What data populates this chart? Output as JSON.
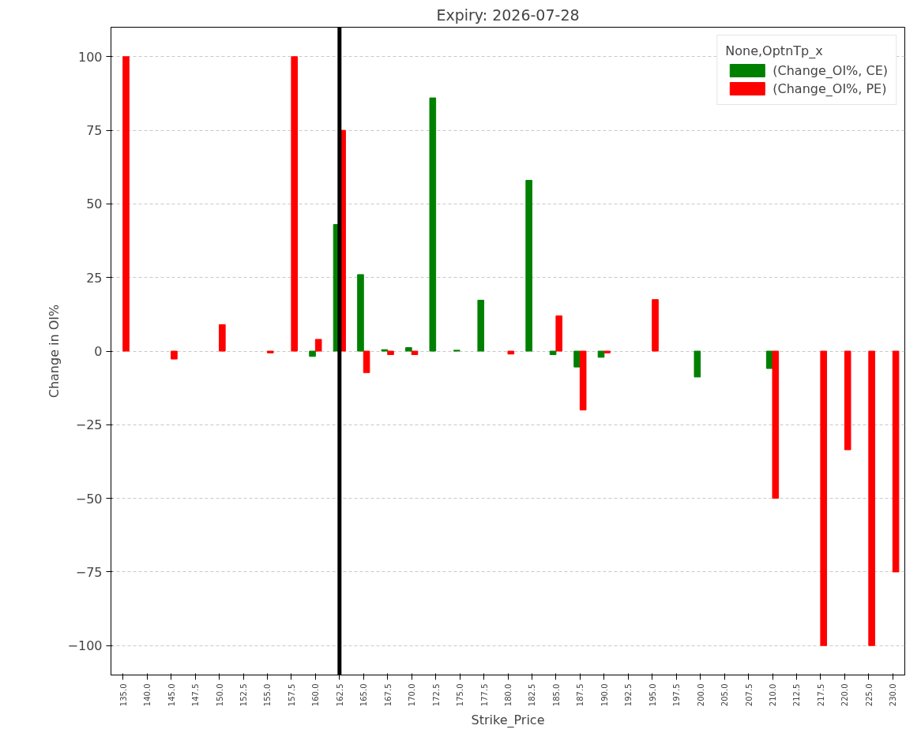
{
  "chart_data": {
    "type": "bar",
    "title": "Expiry: 2026-07-28",
    "xlabel": "Strike_Price",
    "ylabel": "Change in OI%",
    "legend_title": "None,OptnTp_x",
    "categories": [
      "135.0",
      "140.0",
      "145.0",
      "147.5",
      "150.0",
      "152.5",
      "155.0",
      "157.5",
      "160.0",
      "162.5",
      "165.0",
      "167.5",
      "170.0",
      "172.5",
      "175.0",
      "177.5",
      "180.0",
      "182.5",
      "185.0",
      "187.5",
      "190.0",
      "192.5",
      "195.0",
      "197.5",
      "200.0",
      "205.0",
      "207.5",
      "210.0",
      "212.5",
      "217.5",
      "220.0",
      "225.0",
      "230.0"
    ],
    "series": [
      {
        "name": "(Change_OI%, CE)",
        "color": "#008000",
        "values": [
          null,
          null,
          null,
          null,
          null,
          null,
          null,
          null,
          -1.8,
          43,
          26,
          0.5,
          1.2,
          86,
          0.3,
          17.3,
          null,
          58,
          -1.2,
          -5.4,
          -2.1,
          null,
          null,
          null,
          -8.8,
          null,
          null,
          -5.9,
          null,
          null,
          null,
          null,
          null
        ]
      },
      {
        "name": "(Change_OI%, PE)",
        "color": "#ff0000",
        "values": [
          100,
          null,
          -2.7,
          null,
          9,
          null,
          -0.6,
          100,
          4,
          75,
          -7.3,
          -1.2,
          -1.2,
          null,
          null,
          null,
          -1,
          null,
          12,
          -20,
          -0.6,
          null,
          17.5,
          null,
          null,
          null,
          null,
          -50,
          null,
          -100,
          -33.5,
          -100,
          -75
        ]
      }
    ],
    "ylim": [
      -110,
      110
    ],
    "yticks": [
      {
        "value": -100,
        "label": "−100"
      },
      {
        "value": -75,
        "label": "−75"
      },
      {
        "value": -50,
        "label": "−50"
      },
      {
        "value": -25,
        "label": "−25"
      },
      0,
      25,
      50,
      75,
      100
    ],
    "grid": "y",
    "legend": "top right",
    "ref_lines": [
      {
        "axis": "x",
        "value": "162.5",
        "color": "#000000"
      }
    ]
  }
}
